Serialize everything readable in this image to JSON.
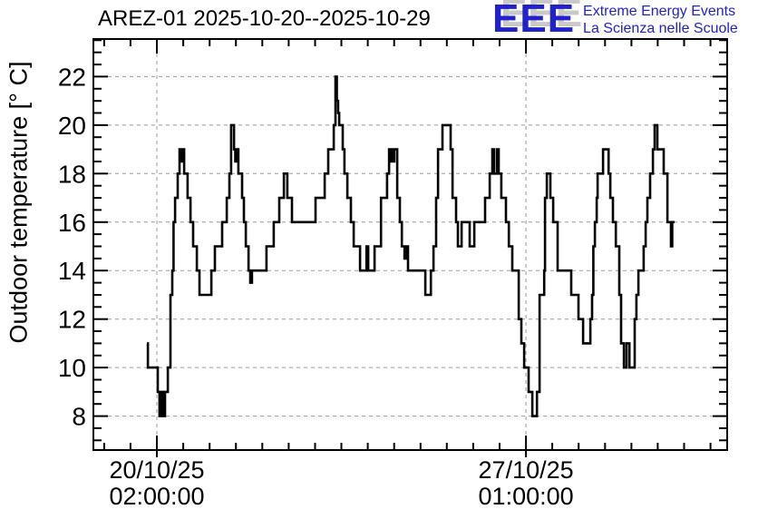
{
  "logo": {
    "acronym": "EEE",
    "line1": "Extreme Energy Events",
    "line2": "La Scienza nelle Scuole",
    "blue": "#2222cc",
    "shadow": "#c9c9c9"
  },
  "chart_data": {
    "type": "line",
    "subtype": "step",
    "title": "AREZ-01 2025-10-20--2025-10-29",
    "xlabel": "",
    "ylabel": "Outdoor temperature [° C]",
    "grid": "dashed gray lines at major ticks",
    "legend": "none",
    "line_color": "#000000",
    "ylim": [
      6.6,
      23.55
    ],
    "xlim_hours": [
      -28.9,
      259.6
    ],
    "y_major_ticks": [
      8,
      10,
      12,
      14,
      16,
      18,
      20,
      22
    ],
    "y_minor_step": 0.5,
    "x_minor_step_hours": 12,
    "x_major_ticks": [
      {
        "hours": 0,
        "label_lines": [
          "20/10/25",
          "02:00:00"
        ]
      },
      {
        "hours": 168,
        "label_lines": [
          "27/10/25",
          "01:00:00"
        ]
      }
    ],
    "x_axis_note": "hours measured from 2025-10-20 02:00:00",
    "series": [
      {
        "name": "Outdoor temperature [° C]",
        "points": [
          [
            -4.5,
            11
          ],
          [
            -4.1,
            10
          ],
          [
            0.4,
            9
          ],
          [
            1.2,
            8
          ],
          [
            1.8,
            9
          ],
          [
            2.7,
            8
          ],
          [
            3.7,
            9
          ],
          [
            5.0,
            10
          ],
          [
            6.2,
            13
          ],
          [
            7.0,
            14
          ],
          [
            7.6,
            16
          ],
          [
            8.3,
            17
          ],
          [
            9.5,
            18
          ],
          [
            10.3,
            19
          ],
          [
            10.9,
            18.5
          ],
          [
            11.4,
            19
          ],
          [
            12.4,
            18
          ],
          [
            14.0,
            17
          ],
          [
            15.3,
            16
          ],
          [
            16.5,
            15
          ],
          [
            18.2,
            14
          ],
          [
            19.4,
            13
          ],
          [
            24.8,
            14
          ],
          [
            26.4,
            15
          ],
          [
            29.7,
            16
          ],
          [
            31.8,
            17
          ],
          [
            33.0,
            18
          ],
          [
            33.8,
            20
          ],
          [
            35.1,
            19
          ],
          [
            35.7,
            18.5
          ],
          [
            36.3,
            19
          ],
          [
            37.1,
            18
          ],
          [
            38.8,
            17
          ],
          [
            39.6,
            16
          ],
          [
            40.5,
            15
          ],
          [
            41.7,
            14
          ],
          [
            42.5,
            13.5
          ],
          [
            43.3,
            14
          ],
          [
            49.9,
            15
          ],
          [
            53.2,
            16
          ],
          [
            55.7,
            17
          ],
          [
            57.8,
            18
          ],
          [
            59.4,
            17
          ],
          [
            61.5,
            16
          ],
          [
            72.2,
            17
          ],
          [
            76.4,
            18
          ],
          [
            78.0,
            19
          ],
          [
            80.5,
            20
          ],
          [
            81.3,
            22
          ],
          [
            81.9,
            21
          ],
          [
            82.5,
            20.5
          ],
          [
            83.0,
            20
          ],
          [
            84.6,
            19
          ],
          [
            85.4,
            18
          ],
          [
            86.7,
            17
          ],
          [
            88.3,
            16
          ],
          [
            89.6,
            15
          ],
          [
            92.5,
            14
          ],
          [
            95.4,
            15
          ],
          [
            96.2,
            14
          ],
          [
            99.1,
            15
          ],
          [
            102.0,
            17
          ],
          [
            104.8,
            18
          ],
          [
            105.7,
            19
          ],
          [
            106.3,
            18.5
          ],
          [
            106.9,
            19
          ],
          [
            107.5,
            18.5
          ],
          [
            108.1,
            19
          ],
          [
            109.4,
            17
          ],
          [
            110.6,
            16
          ],
          [
            111.5,
            15
          ],
          [
            112.7,
            14.5
          ],
          [
            113.3,
            15
          ],
          [
            114.3,
            14
          ],
          [
            122.2,
            13
          ],
          [
            124.7,
            14
          ],
          [
            125.9,
            15
          ],
          [
            127.1,
            17
          ],
          [
            128.0,
            19
          ],
          [
            130.0,
            20
          ],
          [
            133.7,
            19
          ],
          [
            134.6,
            17
          ],
          [
            136.2,
            16
          ],
          [
            137.0,
            15
          ],
          [
            138.7,
            16
          ],
          [
            142.4,
            15
          ],
          [
            144.5,
            16
          ],
          [
            149.4,
            17
          ],
          [
            151.5,
            18
          ],
          [
            152.7,
            19
          ],
          [
            153.5,
            18
          ],
          [
            154.8,
            19
          ],
          [
            155.6,
            18
          ],
          [
            156.8,
            17
          ],
          [
            158.9,
            16
          ],
          [
            160.2,
            15
          ],
          [
            161.8,
            14
          ],
          [
            164.7,
            12
          ],
          [
            165.9,
            11
          ],
          [
            167.2,
            10
          ],
          [
            169.2,
            9
          ],
          [
            170.9,
            8
          ],
          [
            173.0,
            9
          ],
          [
            174.2,
            13
          ],
          [
            176.3,
            14
          ],
          [
            176.7,
            17
          ],
          [
            177.5,
            18
          ],
          [
            179.1,
            17
          ],
          [
            180.4,
            16
          ],
          [
            182.4,
            14
          ],
          [
            188.6,
            13
          ],
          [
            191.9,
            12
          ],
          [
            194.0,
            11
          ],
          [
            197.3,
            12
          ],
          [
            198.1,
            13
          ],
          [
            198.7,
            15
          ],
          [
            199.4,
            16
          ],
          [
            200.2,
            17
          ],
          [
            200.6,
            18
          ],
          [
            203.1,
            19
          ],
          [
            205.6,
            18
          ],
          [
            206.4,
            17
          ],
          [
            207.6,
            16
          ],
          [
            208.9,
            15
          ],
          [
            210.5,
            13
          ],
          [
            211.3,
            11
          ],
          [
            212.6,
            10
          ],
          [
            213.8,
            11
          ],
          [
            215.1,
            10
          ],
          [
            217.5,
            12
          ],
          [
            218.3,
            13
          ],
          [
            219.2,
            14
          ],
          [
            221.6,
            15
          ],
          [
            222.5,
            16
          ],
          [
            223.3,
            17
          ],
          [
            224.5,
            18
          ],
          [
            225.8,
            19
          ],
          [
            226.6,
            20
          ],
          [
            227.8,
            19
          ],
          [
            230.7,
            18
          ],
          [
            232.4,
            16
          ],
          [
            234.0,
            15
          ],
          [
            234.6,
            16
          ],
          [
            235.7,
            16
          ]
        ]
      }
    ]
  }
}
